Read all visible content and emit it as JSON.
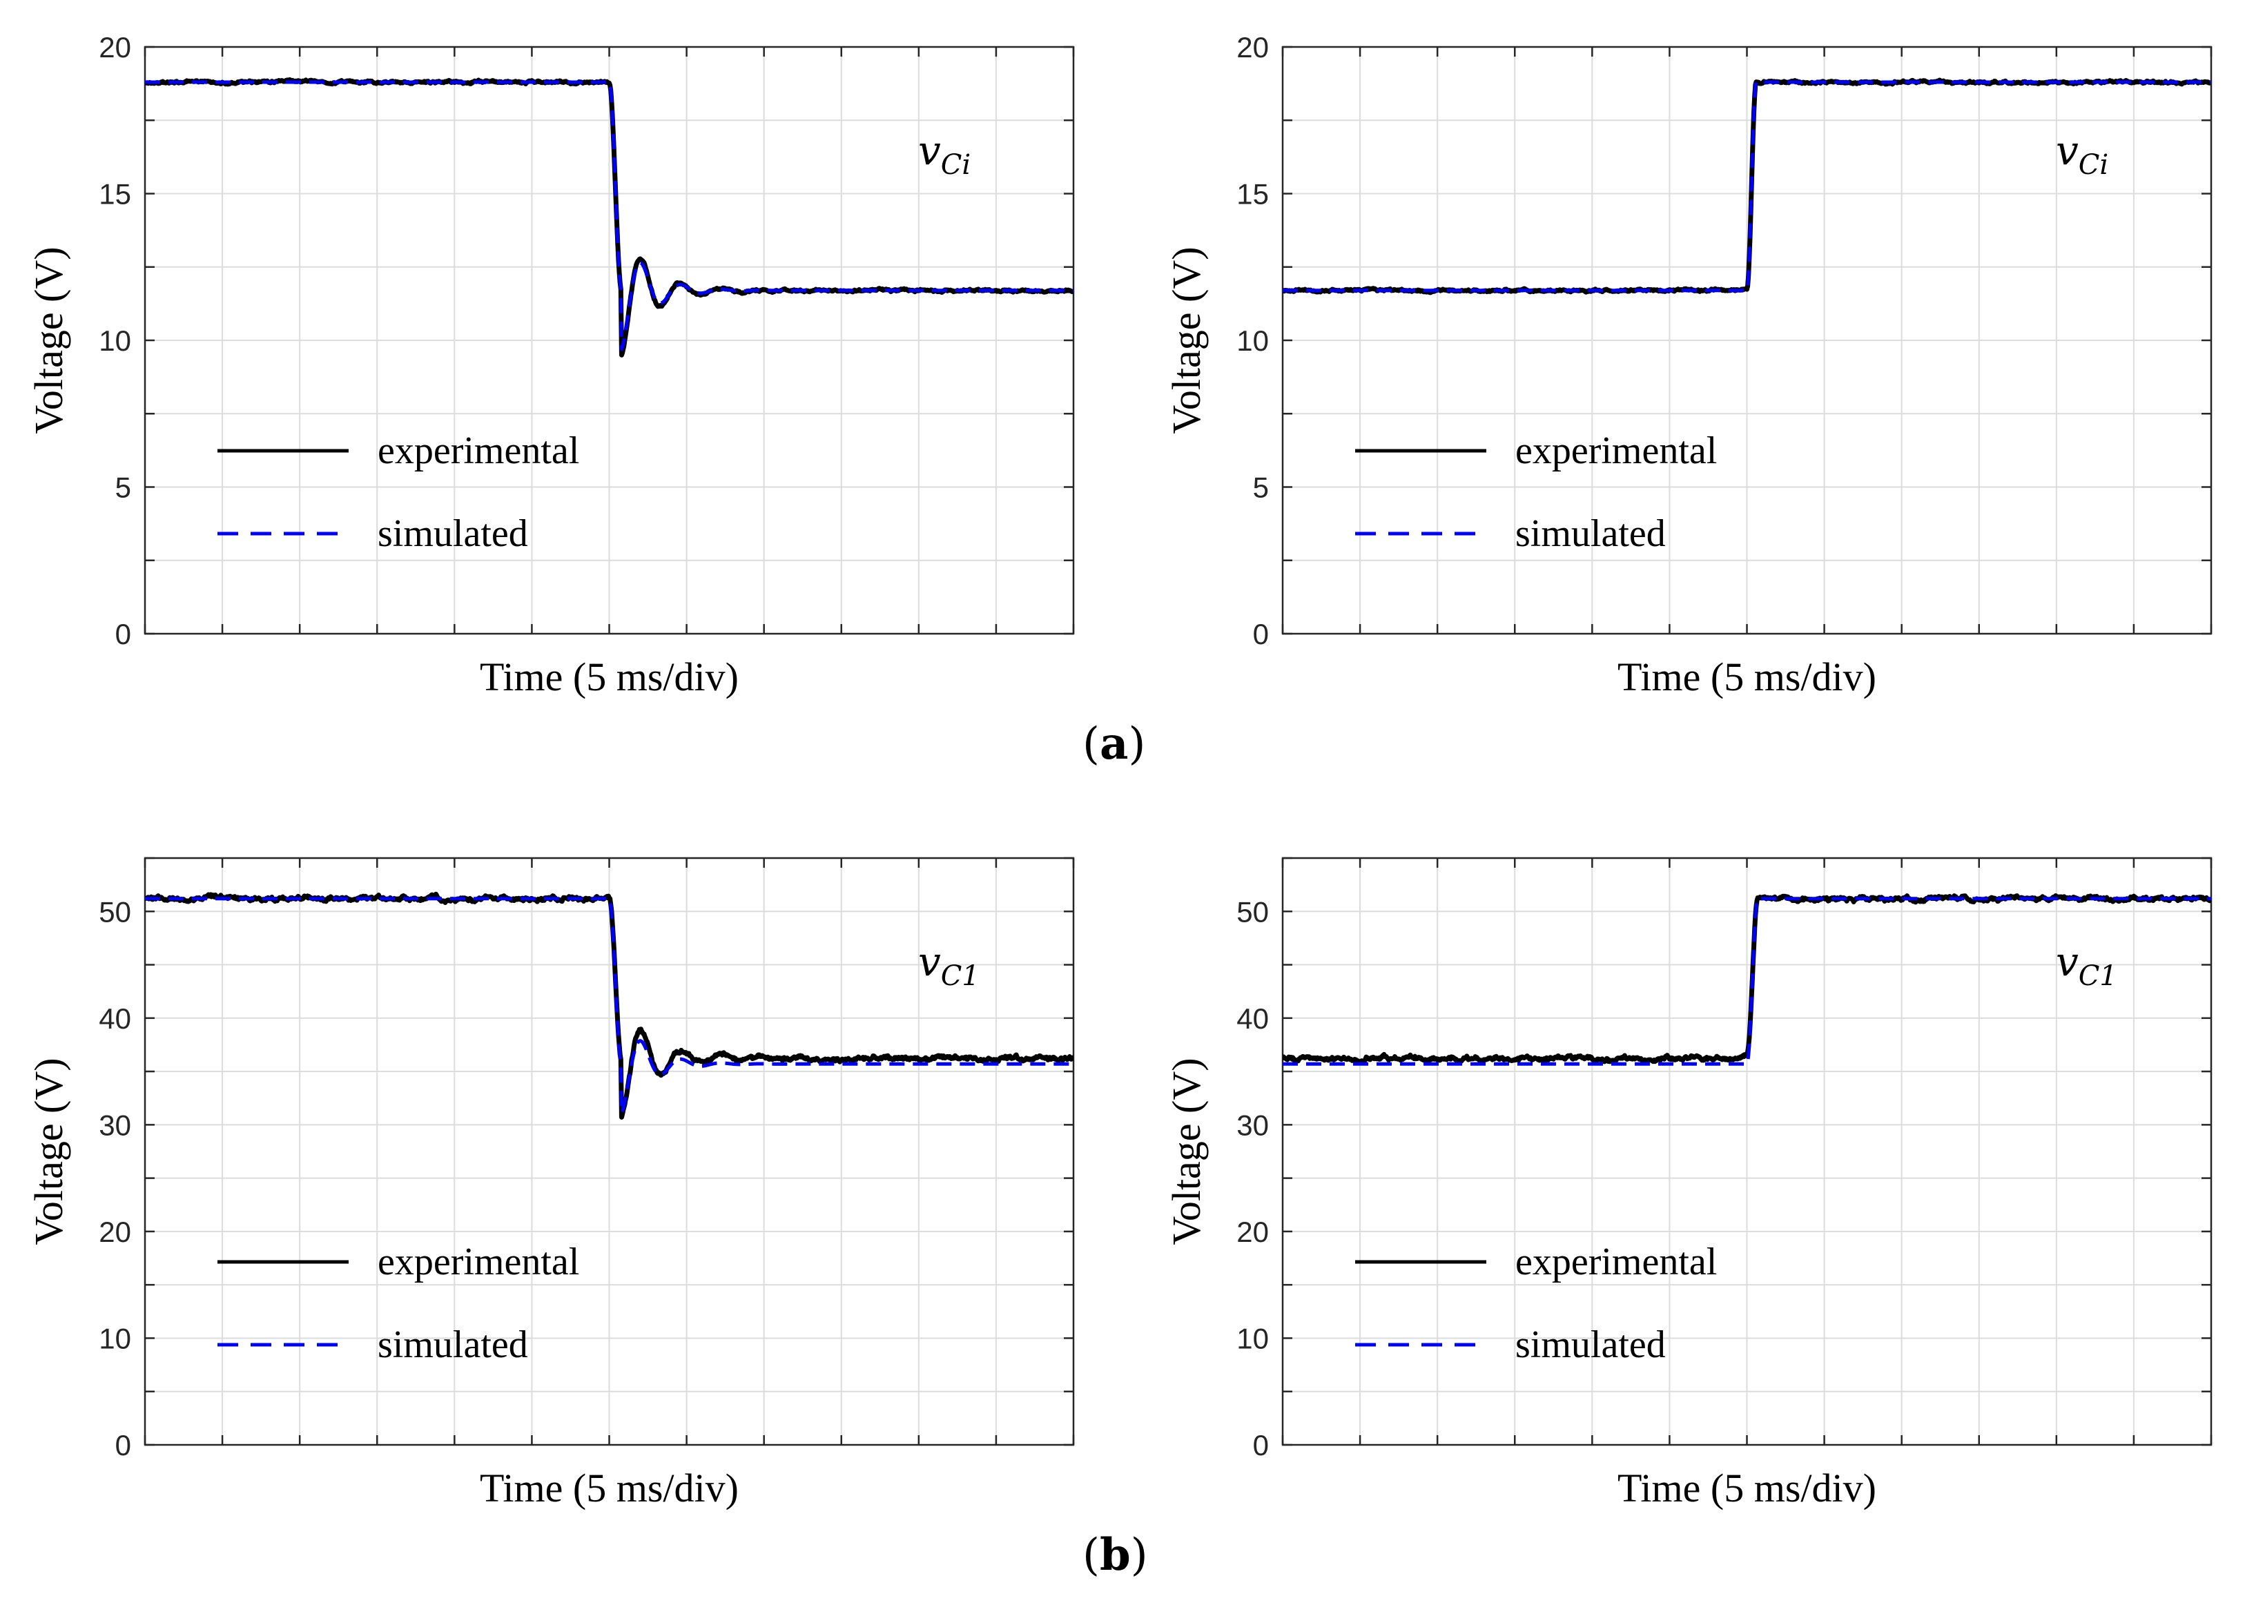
{
  "figure": {
    "caption_a": "a",
    "caption_b": "b",
    "colors": {
      "experimental": "#000000",
      "simulated": "#0000ff",
      "grid": "#dcdcdc",
      "axis": "#262626"
    }
  },
  "chart_data": [
    {
      "id": "a-left",
      "type": "line",
      "title": "",
      "xlabel": "Time (5 ms/div)",
      "ylabel": "Voltage (V)",
      "ylim": [
        0,
        20
      ],
      "yticks": [
        0,
        5,
        10,
        15,
        20
      ],
      "y_minor_step": 2.5,
      "xlim": [
        0,
        60
      ],
      "xticks": [
        0,
        5,
        10,
        15,
        20,
        25,
        30,
        35,
        40,
        45,
        50,
        55,
        60
      ],
      "show_x_ticklabels": false,
      "grid": true,
      "annotation": "vCi",
      "annotation_base": "v",
      "annotation_sub": "Ci",
      "legend": {
        "position": "lower-left",
        "entries": [
          "experimental",
          "simulated"
        ]
      },
      "series": [
        {
          "name": "experimental",
          "kind": "step",
          "initial": 18.8,
          "final": 11.7,
          "t_step": 30.0,
          "fall_time": 0.8,
          "overshoot": 2.2,
          "damping": 0.55,
          "period": 2.6,
          "noise": 0.05
        },
        {
          "name": "simulated",
          "kind": "step",
          "initial": 18.8,
          "final": 11.7,
          "t_step": 30.0,
          "fall_time": 0.8,
          "overshoot": 2.0,
          "damping": 0.6,
          "period": 2.6,
          "noise": 0.0
        }
      ]
    },
    {
      "id": "a-right",
      "type": "line",
      "title": "",
      "xlabel": "Time (5 ms/div)",
      "ylabel": "Voltage (V)",
      "ylim": [
        0,
        20
      ],
      "yticks": [
        0,
        5,
        10,
        15,
        20
      ],
      "y_minor_step": 2.5,
      "xlim": [
        0,
        60
      ],
      "xticks": [
        0,
        5,
        10,
        15,
        20,
        25,
        30,
        35,
        40,
        45,
        50,
        55,
        60
      ],
      "show_x_ticklabels": false,
      "grid": true,
      "annotation": "vCi",
      "annotation_base": "v",
      "annotation_sub": "Ci",
      "legend": {
        "position": "lower-left",
        "entries": [
          "experimental",
          "simulated"
        ]
      },
      "series": [
        {
          "name": "experimental",
          "kind": "step",
          "initial": 11.7,
          "final": 18.8,
          "t_step": 30.0,
          "fall_time": 0.6,
          "overshoot": 0.0,
          "damping": 1.0,
          "period": 2.6,
          "noise": 0.05
        },
        {
          "name": "simulated",
          "kind": "step",
          "initial": 11.7,
          "final": 18.8,
          "t_step": 30.0,
          "fall_time": 0.6,
          "overshoot": 0.0,
          "damping": 1.0,
          "period": 2.6,
          "noise": 0.0
        }
      ]
    },
    {
      "id": "b-left",
      "type": "line",
      "title": "",
      "xlabel": "Time (5 ms/div)",
      "ylabel": "Voltage (V)",
      "ylim": [
        0,
        55
      ],
      "yticks": [
        0,
        10,
        20,
        30,
        40,
        50
      ],
      "y_minor_step": 5,
      "xlim": [
        0,
        60
      ],
      "xticks": [
        0,
        5,
        10,
        15,
        20,
        25,
        30,
        35,
        40,
        45,
        50,
        55,
        60
      ],
      "show_x_ticklabels": false,
      "grid": true,
      "annotation": "vC1",
      "annotation_base": "v",
      "annotation_sub": "C1",
      "legend": {
        "position": "lower-left",
        "entries": [
          "experimental",
          "simulated"
        ]
      },
      "series": [
        {
          "name": "experimental",
          "kind": "step",
          "initial": 51.2,
          "final": 36.2,
          "t_step": 30.0,
          "fall_time": 0.8,
          "overshoot": 5.3,
          "damping": 0.5,
          "period": 2.6,
          "noise": 0.25
        },
        {
          "name": "simulated",
          "kind": "step",
          "initial": 51.2,
          "final": 35.7,
          "t_step": 30.0,
          "fall_time": 0.8,
          "overshoot": 4.6,
          "damping": 0.6,
          "period": 2.6,
          "noise": 0.0
        }
      ]
    },
    {
      "id": "b-right",
      "type": "line",
      "title": "",
      "xlabel": "Time (5 ms/div)",
      "ylabel": "Voltage (V)",
      "ylim": [
        0,
        55
      ],
      "yticks": [
        0,
        10,
        20,
        30,
        40,
        50
      ],
      "y_minor_step": 5,
      "xlim": [
        0,
        60
      ],
      "xticks": [
        0,
        5,
        10,
        15,
        20,
        25,
        30,
        35,
        40,
        45,
        50,
        55,
        60
      ],
      "show_x_ticklabels": false,
      "grid": true,
      "annotation": "vC1",
      "annotation_base": "v",
      "annotation_sub": "C1",
      "legend": {
        "position": "lower-left",
        "entries": [
          "experimental",
          "simulated"
        ]
      },
      "series": [
        {
          "name": "experimental",
          "kind": "step",
          "initial": 36.2,
          "final": 51.2,
          "t_step": 30.0,
          "fall_time": 0.7,
          "overshoot": 0.0,
          "damping": 1.0,
          "period": 2.6,
          "noise": 0.25
        },
        {
          "name": "simulated",
          "kind": "step",
          "initial": 35.7,
          "final": 51.2,
          "t_step": 30.0,
          "fall_time": 0.7,
          "overshoot": 0.0,
          "damping": 1.0,
          "period": 2.6,
          "noise": 0.0
        }
      ]
    }
  ]
}
